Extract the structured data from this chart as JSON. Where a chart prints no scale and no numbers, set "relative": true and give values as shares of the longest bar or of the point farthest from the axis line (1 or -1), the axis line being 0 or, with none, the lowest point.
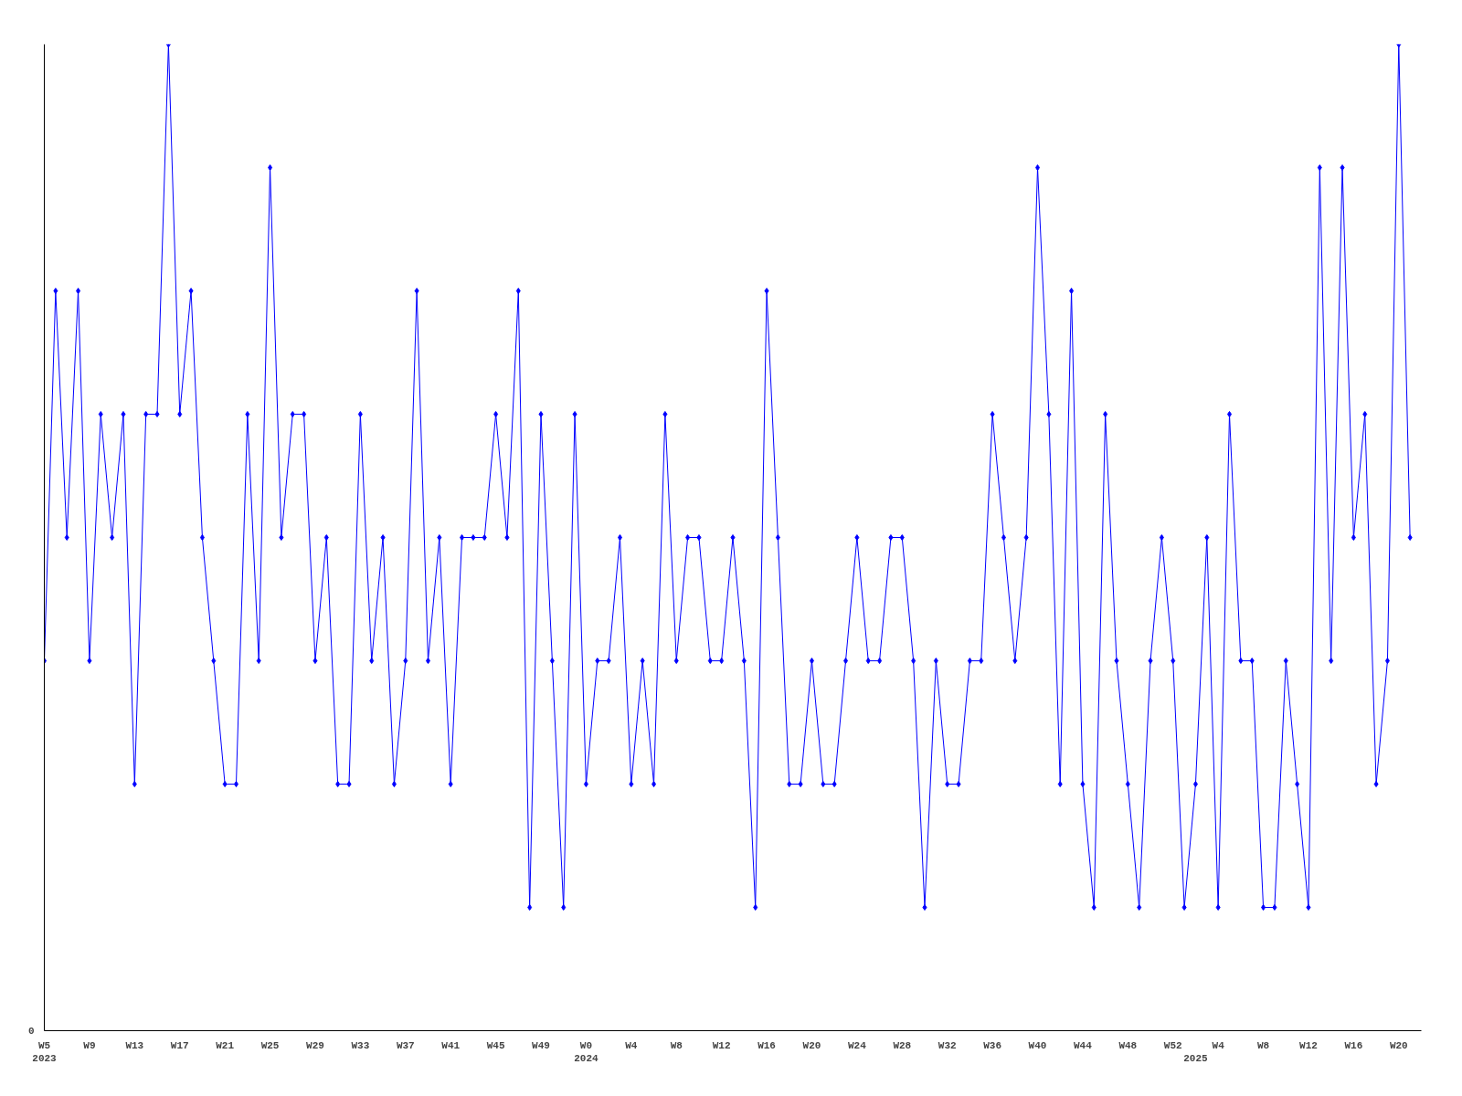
{
  "chart_data": {
    "type": "line",
    "relative": true,
    "marker": "diamond",
    "line_style": "solid",
    "grid": false,
    "annotations": [
      "0"
    ],
    "categories": [
      "W5\n2023",
      null,
      null,
      null,
      "W9",
      null,
      null,
      null,
      "W13",
      null,
      null,
      null,
      "W17",
      null,
      null,
      null,
      "W21",
      null,
      null,
      null,
      "W25",
      null,
      null,
      null,
      "W29",
      null,
      null,
      null,
      "W33",
      null,
      null,
      null,
      "W37",
      null,
      null,
      null,
      "W41",
      null,
      null,
      null,
      "W45",
      null,
      null,
      null,
      "W49",
      null,
      null,
      null,
      "W0\n2024",
      null,
      null,
      null,
      "W4",
      null,
      null,
      null,
      "W8",
      null,
      null,
      null,
      "W12",
      null,
      null,
      null,
      "W16",
      null,
      null,
      null,
      "W20",
      null,
      null,
      null,
      "W24",
      null,
      null,
      null,
      "W28",
      null,
      null,
      null,
      "W32",
      null,
      null,
      null,
      "W36",
      null,
      null,
      null,
      "W40",
      null,
      null,
      null,
      "W44",
      null,
      null,
      null,
      "W48",
      null,
      null,
      null,
      "W52",
      null,
      "\n2025",
      null,
      "W4",
      null,
      null,
      null,
      "W8",
      null,
      null,
      null,
      "W12",
      null,
      null,
      null,
      "W16",
      null,
      null,
      null,
      "W20",
      null
    ],
    "series": [
      {
        "color": "#0000ff",
        "values": [
          0.375,
          0.75,
          0.5,
          0.75,
          0.375,
          0.625,
          0.5,
          0.625,
          0.25,
          0.625,
          0.625,
          1,
          0.625,
          0.75,
          0.5,
          0.375,
          0.25,
          0.25,
          0.625,
          0.375,
          0.875,
          0.5,
          0.625,
          0.625,
          0.375,
          0.5,
          0.25,
          0.25,
          0.625,
          0.375,
          0.5,
          0.25,
          0.375,
          0.75,
          0.375,
          0.5,
          0.25,
          0.5,
          0.5,
          0.5,
          0.625,
          0.5,
          0.75,
          0.125,
          0.625,
          0.375,
          0.125,
          0.625,
          0.25,
          0.375,
          0.375,
          0.5,
          0.25,
          0.375,
          0.25,
          0.625,
          0.375,
          0.5,
          0.5,
          0.375,
          0.375,
          0.5,
          0.375,
          0.125,
          0.75,
          0.5,
          0.25,
          0.25,
          0.375,
          0.25,
          0.25,
          0.375,
          0.5,
          0.375,
          0.375,
          0.5,
          0.5,
          0.375,
          0.125,
          0.375,
          0.25,
          0.25,
          0.375,
          0.375,
          0.625,
          0.5,
          0.375,
          0.5,
          0.875,
          0.625,
          0.25,
          0.75,
          0.25,
          0.125,
          0.625,
          0.375,
          0.25,
          0.125,
          0.375,
          0.5,
          0.375,
          0.125,
          0.25,
          0.5,
          0.125,
          0.625,
          0.375,
          0.375,
          0.125,
          0.125,
          0.375,
          0.25,
          0.125,
          0.875,
          0.375,
          0.875,
          0.5,
          0.625,
          0.25,
          0.375,
          1,
          0.5
        ]
      }
    ]
  }
}
